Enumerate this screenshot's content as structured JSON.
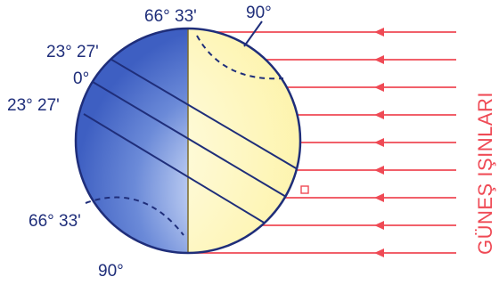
{
  "labels": {
    "top_left_angle": "66° 33'",
    "top_right_angle": "90°",
    "tropic_north": "23° 27'",
    "equator": "0°",
    "tropic_south": "23° 27'",
    "bottom_angle": "66° 33'",
    "bottom_90": "90°"
  },
  "rays": {
    "title": "GÜNEŞ IŞINLARI",
    "count": 9
  },
  "colors": {
    "night": "#4a6fce",
    "day": "#fff8c8",
    "outline": "#1f2e7a",
    "ray": "#ef4a55"
  }
}
